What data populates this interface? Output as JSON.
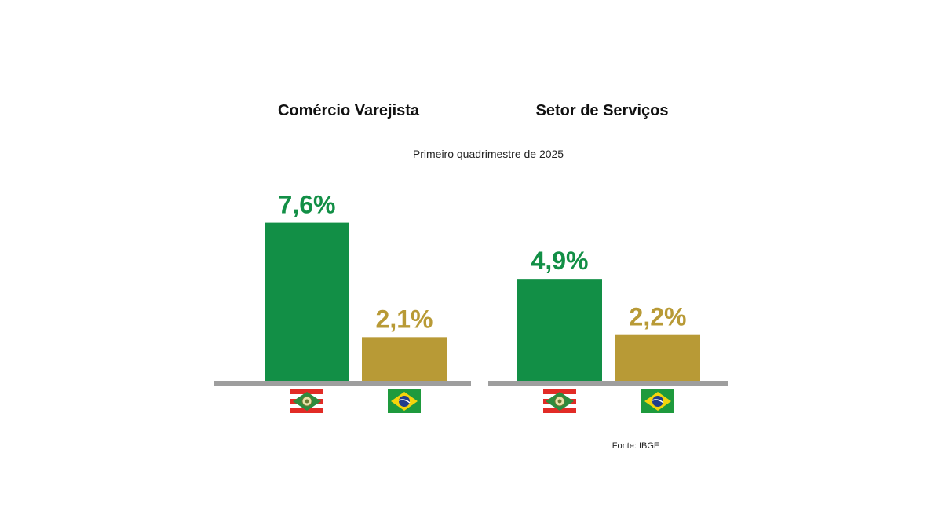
{
  "colors": {
    "santa_catarina": "#128F46",
    "brasil": "#B89A36",
    "baseline": "#9E9E9E"
  },
  "subtitle": "Primeiro quadrimestre de 2025",
  "source": "Fonte: IBGE",
  "chart_data": [
    {
      "type": "bar",
      "title": "Comércio Varejista",
      "categories": [
        "Santa Catarina",
        "Brasil"
      ],
      "category_icons": [
        "santa-catarina-flag-icon",
        "brazil-flag-icon"
      ],
      "values": [
        7.6,
        2.1
      ],
      "labels": [
        "7,6%",
        "2,1%"
      ],
      "ylim": [
        0,
        8
      ],
      "grid": false
    },
    {
      "type": "bar",
      "title": "Setor de Serviços",
      "categories": [
        "Santa Catarina",
        "Brasil"
      ],
      "category_icons": [
        "santa-catarina-flag-icon",
        "brazil-flag-icon"
      ],
      "values": [
        4.9,
        2.2
      ],
      "labels": [
        "4,9%",
        "2,2%"
      ],
      "ylim": [
        0,
        8
      ],
      "grid": false
    }
  ]
}
